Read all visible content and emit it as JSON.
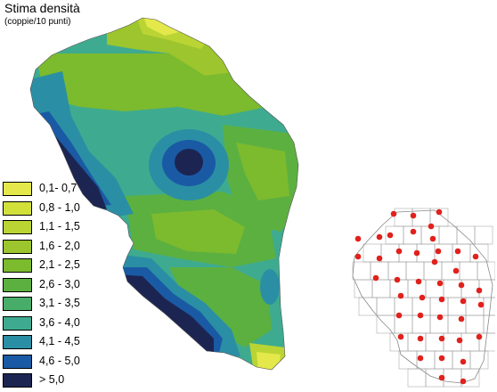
{
  "title": "Stima densità",
  "subtitle": "(coppie/10 punti)",
  "legend": [
    {
      "label": "0,1- 0,7",
      "color": "#e4e84a"
    },
    {
      "label": "0,8 - 1,0",
      "color": "#d2e03a"
    },
    {
      "label": "1,1 - 1,5",
      "color": "#bad434"
    },
    {
      "label": "1,6 - 2,0",
      "color": "#9cc52e"
    },
    {
      "label": "2,1 - 2,5",
      "color": "#7cba2e"
    },
    {
      "label": "2,6 - 3,0",
      "color": "#5cb040"
    },
    {
      "label": "3,1 - 3,5",
      "color": "#48ad68"
    },
    {
      "label": "3,6 - 4,0",
      "color": "#3eab90"
    },
    {
      "label": "4,1 - 4,5",
      "color": "#2a8fa4"
    },
    {
      "label": "4,6 - 5,0",
      "color": "#1a5aa4"
    },
    {
      "label": "> 5,0",
      "color": "#1c2552"
    }
  ],
  "colors": {
    "sample_point": "#e0211c",
    "inset_grid": "#999999"
  }
}
